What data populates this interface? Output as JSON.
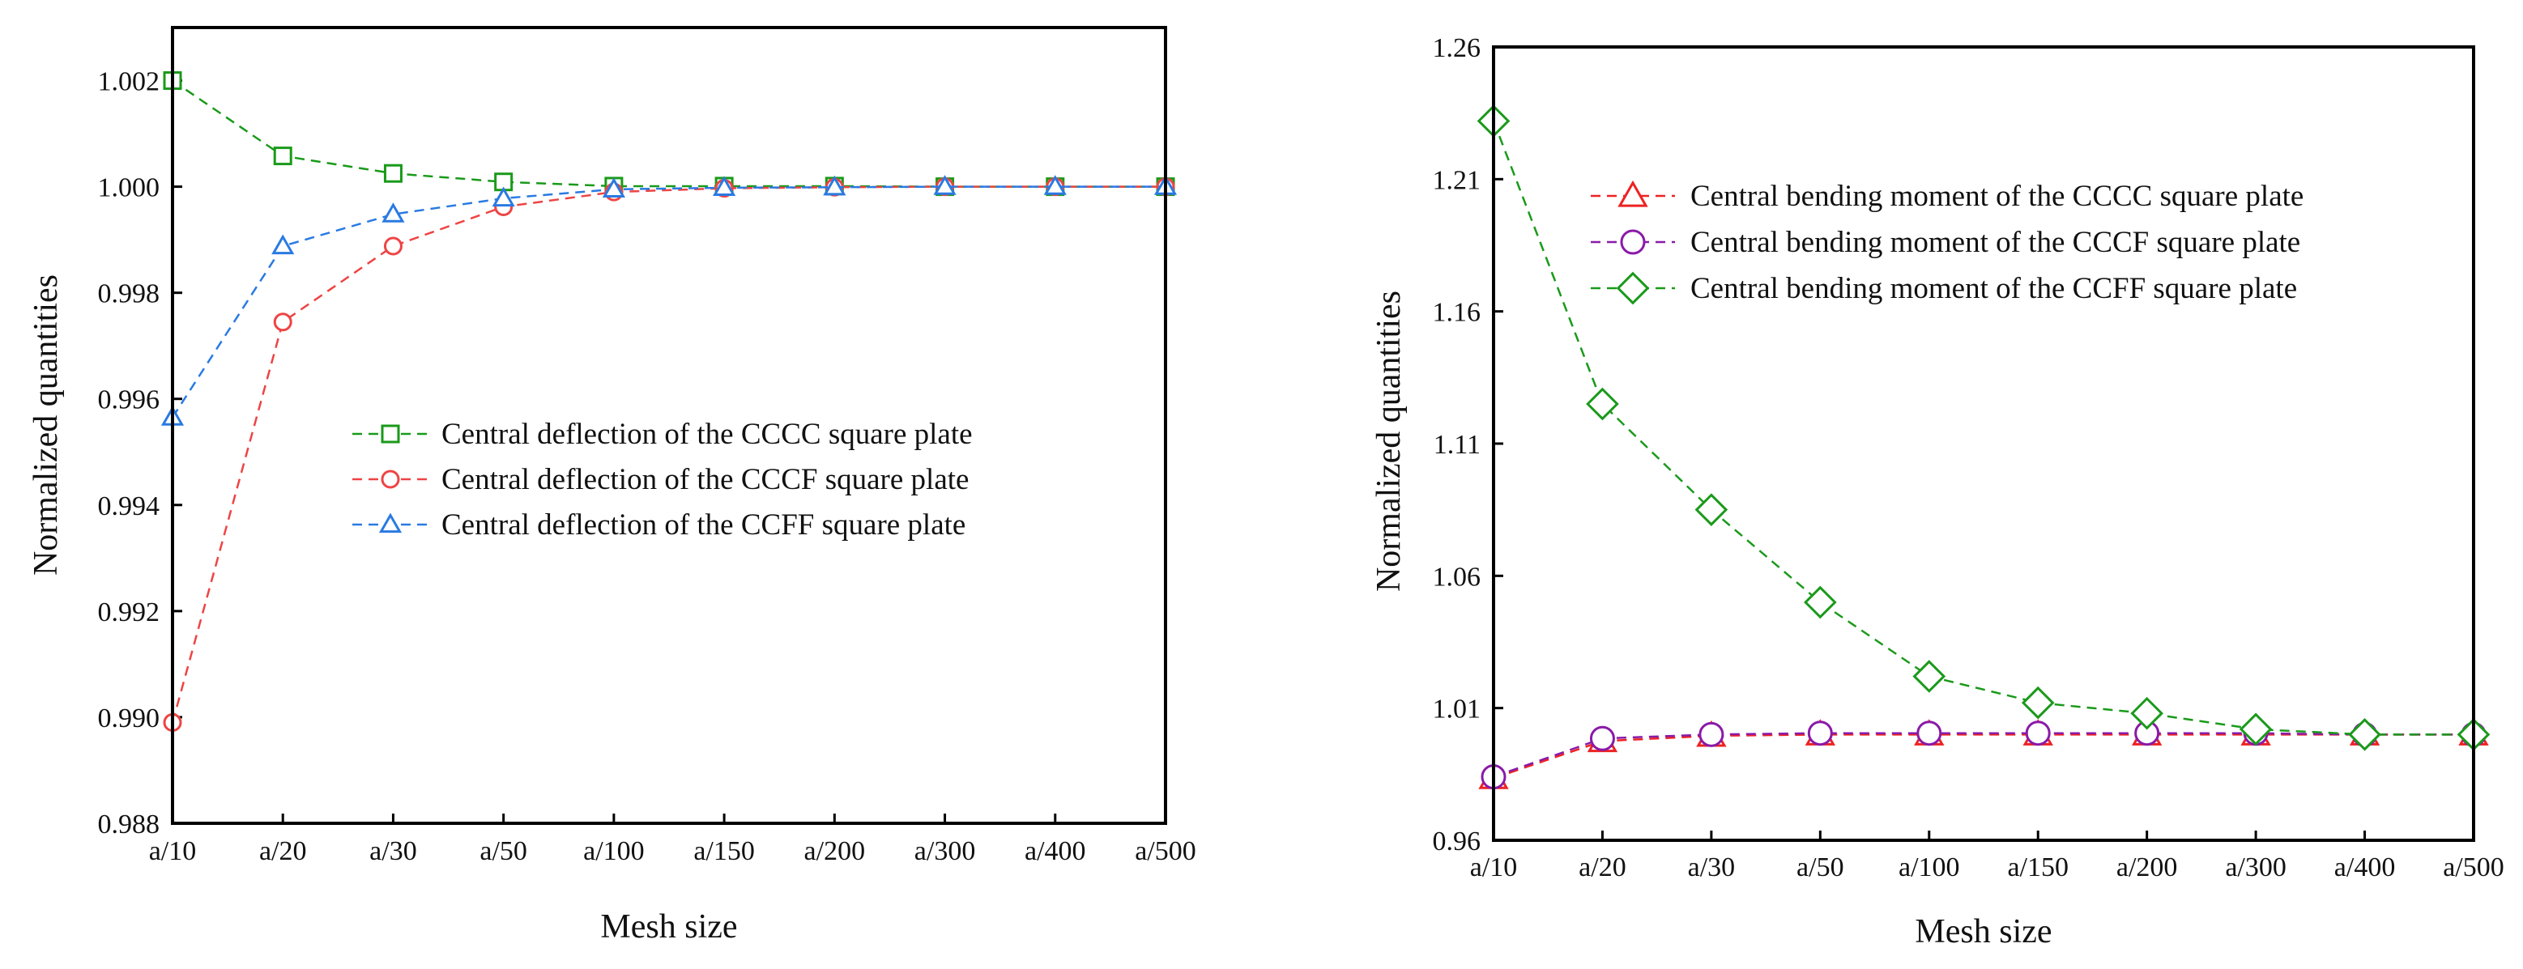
{
  "chart_data": [
    {
      "type": "line",
      "categories": [
        "a/10",
        "a/20",
        "a/30",
        "a/50",
        "a/100",
        "a/150",
        "a/200",
        "a/300",
        "a/400",
        "a/500"
      ],
      "xlabel": "Mesh size",
      "ylabel": "Normalized quantities",
      "ylim": [
        0.988,
        1.003
      ],
      "yticks": [
        "0.988",
        "0.990",
        "0.992",
        "0.994",
        "0.996",
        "0.998",
        "1.000",
        "1.002"
      ],
      "ytick_values": [
        0.988,
        0.99,
        0.992,
        0.994,
        0.996,
        0.998,
        1.0,
        1.002
      ],
      "legend_position": "center-right",
      "series": [
        {
          "name": "Central deflection of the CCCC square plate",
          "color": "#1a9a1a",
          "marker": "square",
          "values": [
            1.002,
            1.00058,
            1.00025,
            1.00009,
            1.00001,
            1.00001,
            1.00001,
            1.0,
            1.0,
            1.0
          ]
        },
        {
          "name": "Central deflection of the CCCF square plate",
          "color": "#ee4444",
          "marker": "circle",
          "values": [
            0.9899,
            0.99745,
            0.99888,
            0.99962,
            0.9999,
            0.99997,
            0.99999,
            1.0,
            1.0,
            1.0
          ]
        },
        {
          "name": "Central deflection of the CCFF square plate",
          "color": "#2a7ae2",
          "marker": "triangle",
          "values": [
            0.99565,
            0.99888,
            0.99948,
            0.99978,
            0.99995,
            0.99998,
            0.99999,
            1.0,
            1.0,
            1.0
          ]
        }
      ]
    },
    {
      "type": "line",
      "categories": [
        "a/10",
        "a/20",
        "a/30",
        "a/50",
        "a/100",
        "a/150",
        "a/200",
        "a/300",
        "a/400",
        "a/500"
      ],
      "xlabel": "Mesh size",
      "ylabel": "Normalized quantities",
      "ylim": [
        0.96,
        1.26
      ],
      "yticks": [
        "0.96",
        "1.01",
        "1.06",
        "1.11",
        "1.16",
        "1.21",
        "1.26"
      ],
      "ytick_values": [
        0.96,
        1.01,
        1.06,
        1.11,
        1.16,
        1.21,
        1.26
      ],
      "legend_position": "top-right",
      "series": [
        {
          "name": "Central bending moment of the CCCC square plate",
          "color": "#ee2222",
          "marker": "triangle",
          "values": [
            0.9835,
            0.9975,
            0.9995,
            1.0,
            1.0,
            1.0,
            1.0,
            1.0,
            1.0,
            1.0
          ]
        },
        {
          "name": "Central bending moment of the CCCF  square plate",
          "color": "#8a1aa8",
          "marker": "circle",
          "values": [
            0.984,
            0.9985,
            1.0,
            1.0005,
            1.0005,
            1.0005,
            1.0005,
            1.0005,
            1.0,
            1.0
          ]
        },
        {
          "name": "Central bending moment of the CCFF  square plate",
          "color": "#1a9a1a",
          "marker": "diamond",
          "values": [
            1.232,
            1.125,
            1.085,
            1.05,
            1.022,
            1.012,
            1.008,
            1.002,
            1.0,
            1.0
          ]
        }
      ]
    }
  ]
}
